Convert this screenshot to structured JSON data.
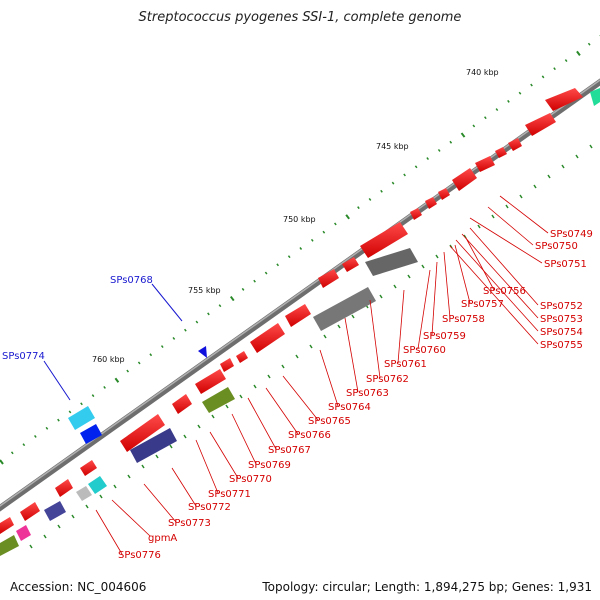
{
  "title": "Streptococcus pyogenes SSI-1, complete genome",
  "footer": {
    "accession": "Accession: NC_004606",
    "summary": "Topology: circular; Length: 1,894,275 bp; Genes: 1,931"
  },
  "ticks": [
    "740 kbp",
    "745 kbp",
    "750 kbp",
    "755 kbp",
    "760 kbp"
  ],
  "gene_labels": [
    "SPs0749",
    "SPs0750",
    "SPs0751",
    "SPs0752",
    "SPs0753",
    "SPs0754",
    "SPs0755",
    "SPs0756",
    "SPs0757",
    "SPs0758",
    "SPs0759",
    "SPs0760",
    "SPs0761",
    "SPs0762",
    "SPs0763",
    "SPs0764",
    "SPs0765",
    "SPs0766",
    "SPs0767",
    "SPs0769",
    "SPs0770",
    "SPs0771",
    "SPs0772",
    "SPs0773",
    "gpmA",
    "SPs0776"
  ],
  "outer_labels": [
    "SPs0768",
    "SPs0774"
  ],
  "colors": {
    "cds": "#ee0000",
    "backbone": "#888888",
    "tick": "#2a8a2a",
    "label_red": "#d40000",
    "label_blue": "#1a1ad0"
  }
}
